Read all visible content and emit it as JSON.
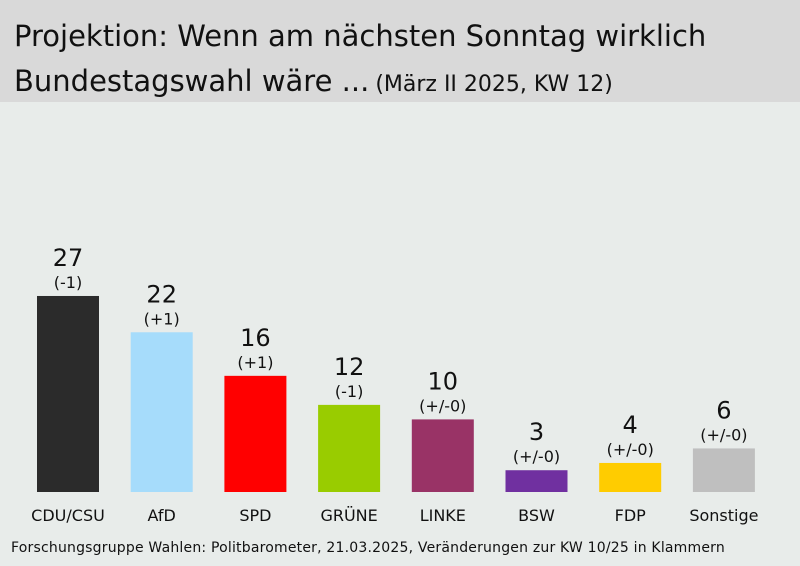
{
  "header": {
    "title_line_1": "Projektion: Wenn am nächsten Sonntag wirklich",
    "title_line_2": "Bundestagswahl wäre ...",
    "subtitle": "(März II 2025, KW 12)"
  },
  "source": "Forschungsgruppe Wahlen: Politbarometer, 21.03.2025, Veränderungen zur KW 10/25 in Klammern",
  "chart_data": {
    "type": "bar",
    "categories": [
      "CDU/CSU",
      "AfD",
      "SPD",
      "GRÜNE",
      "LINKE",
      "BSW",
      "FDP",
      "Sonstige"
    ],
    "values": [
      27,
      22,
      16,
      12,
      10,
      3,
      4,
      6
    ],
    "changes": [
      "(-1)",
      "(+1)",
      "(+1)",
      "(-1)",
      "(+/-0)",
      "(+/-0)",
      "(+/-0)",
      "(+/-0)"
    ],
    "colors": [
      "#2b2b2b",
      "#a6dcfb",
      "#ff0000",
      "#99cc00",
      "#993366",
      "#7030a0",
      "#ffcc00",
      "#bfbfbf"
    ],
    "title": "Projektion: Wenn am nächsten Sonntag wirklich Bundestagswahl wäre ...",
    "subtitle": "(März II 2025, KW 12)",
    "xlabel": "",
    "ylabel": "",
    "grid": false
  }
}
